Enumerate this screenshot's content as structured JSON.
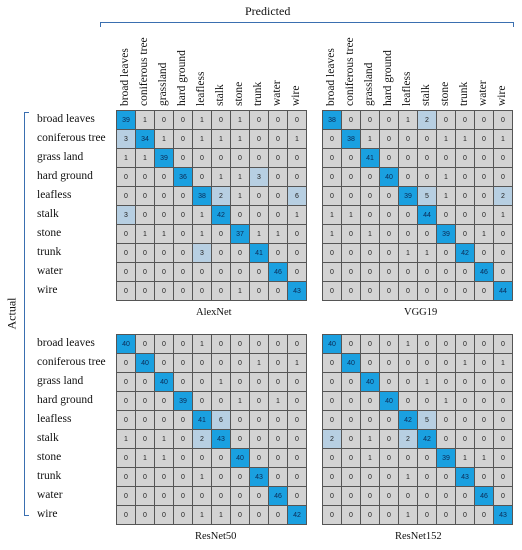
{
  "header": {
    "predicted": "Predicted",
    "actual": "Actual"
  },
  "class_labels": [
    "broad leaves",
    "coniferous tree",
    "grass land",
    "hard ground",
    "leafless",
    "stalk",
    "stone",
    "trunk",
    "water",
    "wire"
  ],
  "col_labels": [
    "broad leaves",
    "coniferous tree",
    "grassland",
    "hard ground",
    "leafless",
    "stalk",
    "stone",
    "trunk",
    "water",
    "wire"
  ],
  "colors": {
    "diagonal": "#1aa0e0",
    "off": "#d3d3d3",
    "tint": "#b7cfe2",
    "brace": "#3a6fb0"
  },
  "chart_data": [
    {
      "type": "heatmap",
      "title": "AlexNet",
      "xlabel": "Predicted",
      "ylabel": "Actual",
      "values": [
        [
          39,
          1,
          0,
          0,
          1,
          0,
          1,
          0,
          0,
          0
        ],
        [
          3,
          34,
          1,
          0,
          1,
          1,
          1,
          0,
          0,
          1
        ],
        [
          1,
          1,
          39,
          0,
          0,
          0,
          0,
          0,
          0,
          0
        ],
        [
          0,
          0,
          0,
          36,
          0,
          1,
          1,
          3,
          0,
          0
        ],
        [
          0,
          0,
          0,
          0,
          38,
          2,
          1,
          0,
          0,
          6
        ],
        [
          3,
          0,
          0,
          0,
          1,
          42,
          0,
          0,
          0,
          1
        ],
        [
          0,
          1,
          1,
          0,
          1,
          0,
          37,
          1,
          1,
          0
        ],
        [
          0,
          0,
          0,
          0,
          3,
          0,
          0,
          41,
          0,
          0
        ],
        [
          0,
          0,
          0,
          0,
          0,
          0,
          0,
          0,
          46,
          0
        ],
        [
          0,
          0,
          0,
          0,
          0,
          0,
          1,
          0,
          0,
          43
        ]
      ]
    },
    {
      "type": "heatmap",
      "title": "VGG19",
      "xlabel": "Predicted",
      "ylabel": "Actual",
      "values": [
        [
          38,
          0,
          0,
          0,
          1,
          2,
          0,
          0,
          0,
          0
        ],
        [
          0,
          38,
          1,
          0,
          0,
          0,
          1,
          1,
          0,
          1
        ],
        [
          0,
          0,
          41,
          0,
          0,
          0,
          0,
          0,
          0,
          0
        ],
        [
          0,
          0,
          0,
          40,
          0,
          0,
          1,
          0,
          0,
          0
        ],
        [
          0,
          0,
          0,
          0,
          39,
          5,
          1,
          0,
          0,
          2
        ],
        [
          1,
          1,
          0,
          0,
          0,
          44,
          0,
          0,
          0,
          1
        ],
        [
          1,
          0,
          1,
          0,
          0,
          0,
          39,
          0,
          1,
          0
        ],
        [
          0,
          0,
          0,
          0,
          1,
          1,
          0,
          42,
          0,
          0
        ],
        [
          0,
          0,
          0,
          0,
          0,
          0,
          0,
          0,
          46,
          0
        ],
        [
          0,
          0,
          0,
          0,
          0,
          0,
          0,
          0,
          0,
          44
        ]
      ]
    },
    {
      "type": "heatmap",
      "title": "ResNet50",
      "xlabel": "Predicted",
      "ylabel": "Actual",
      "values": [
        [
          40,
          0,
          0,
          0,
          1,
          0,
          0,
          0,
          0,
          0
        ],
        [
          0,
          40,
          0,
          0,
          0,
          0,
          0,
          1,
          0,
          1
        ],
        [
          0,
          0,
          40,
          0,
          0,
          1,
          0,
          0,
          0,
          0
        ],
        [
          0,
          0,
          0,
          39,
          0,
          0,
          1,
          0,
          1,
          0
        ],
        [
          0,
          0,
          0,
          0,
          41,
          6,
          0,
          0,
          0,
          0
        ],
        [
          1,
          0,
          1,
          0,
          2,
          43,
          0,
          0,
          0,
          0
        ],
        [
          0,
          1,
          1,
          0,
          0,
          0,
          40,
          0,
          0,
          0
        ],
        [
          0,
          0,
          0,
          0,
          1,
          0,
          0,
          43,
          0,
          0
        ],
        [
          0,
          0,
          0,
          0,
          0,
          0,
          0,
          0,
          46,
          0
        ],
        [
          0,
          0,
          0,
          0,
          1,
          1,
          0,
          0,
          0,
          42
        ]
      ]
    },
    {
      "type": "heatmap",
      "title": "ResNet152",
      "xlabel": "Predicted",
      "ylabel": "Actual",
      "values": [
        [
          40,
          0,
          0,
          0,
          1,
          0,
          0,
          0,
          0,
          0
        ],
        [
          0,
          40,
          0,
          0,
          0,
          0,
          0,
          1,
          0,
          1
        ],
        [
          0,
          0,
          40,
          0,
          0,
          1,
          0,
          0,
          0,
          0
        ],
        [
          0,
          0,
          0,
          40,
          0,
          0,
          1,
          0,
          0,
          0
        ],
        [
          0,
          0,
          0,
          0,
          42,
          5,
          0,
          0,
          0,
          0
        ],
        [
          2,
          0,
          1,
          0,
          2,
          42,
          0,
          0,
          0,
          0
        ],
        [
          0,
          0,
          1,
          0,
          0,
          0,
          39,
          1,
          1,
          0
        ],
        [
          0,
          0,
          0,
          0,
          1,
          0,
          0,
          43,
          0,
          0
        ],
        [
          0,
          0,
          0,
          0,
          0,
          0,
          0,
          0,
          46,
          0
        ],
        [
          0,
          0,
          0,
          0,
          1,
          0,
          0,
          0,
          0,
          43
        ]
      ]
    }
  ]
}
